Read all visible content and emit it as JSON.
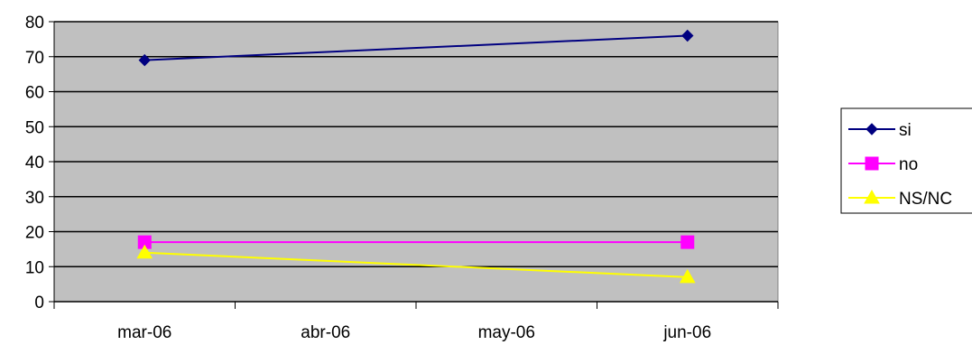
{
  "chart_data": {
    "type": "line",
    "title": "",
    "xlabel": "",
    "ylabel": "",
    "categories": [
      "mar-06",
      "abr-06",
      "may-06",
      "jun-06"
    ],
    "ylim": [
      0,
      80
    ],
    "yticks": [
      0,
      10,
      20,
      30,
      40,
      50,
      60,
      70,
      80
    ],
    "grid": "horizontal",
    "plot_background": "#C0C0C0",
    "legend_position": "right",
    "series": [
      {
        "name": "si",
        "color": "#000080",
        "marker": "diamond",
        "points": [
          {
            "x": "mar-06",
            "y": 69
          },
          {
            "x": "jun-06",
            "y": 76
          }
        ]
      },
      {
        "name": "no",
        "color": "#FF00FF",
        "marker": "square",
        "points": [
          {
            "x": "mar-06",
            "y": 17
          },
          {
            "x": "jun-06",
            "y": 17
          }
        ]
      },
      {
        "name": "NS/NC",
        "color": "#FFFF00",
        "marker": "triangle",
        "points": [
          {
            "x": "mar-06",
            "y": 14
          },
          {
            "x": "jun-06",
            "y": 7
          }
        ]
      }
    ]
  }
}
